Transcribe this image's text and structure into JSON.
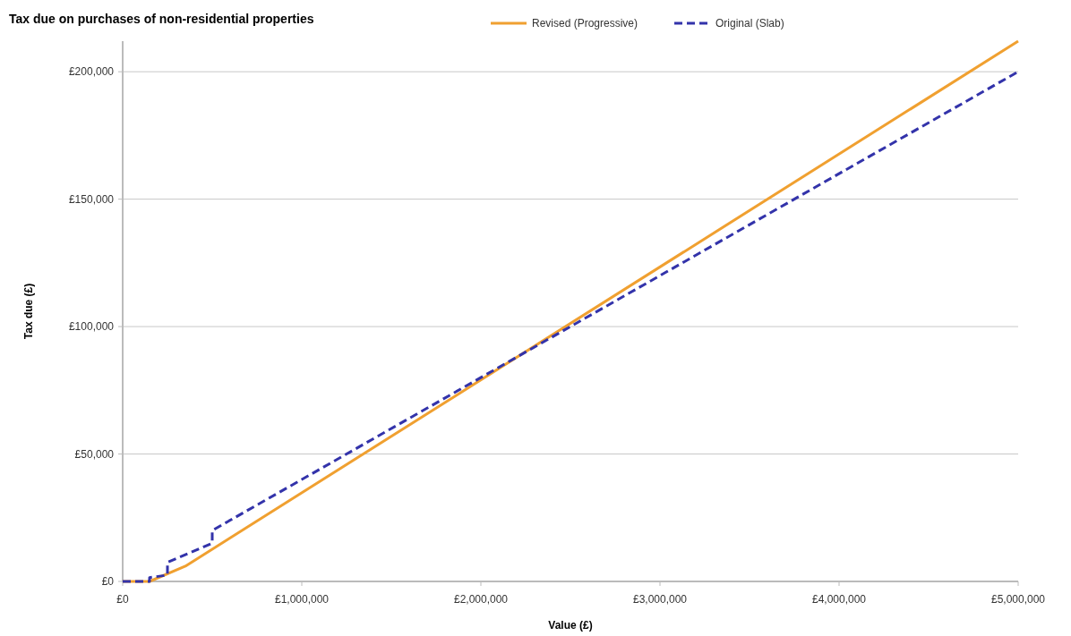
{
  "chart_data": {
    "type": "line",
    "title": "Tax due on purchases of non-residential properties",
    "xlabel": "Value (£)",
    "ylabel": "Tax due (£)",
    "xlim": [
      0,
      5000000
    ],
    "ylim": [
      0,
      212000
    ],
    "xticks": [
      {
        "value": 0,
        "label": "£0"
      },
      {
        "value": 1000000,
        "label": "£1,000,000"
      },
      {
        "value": 2000000,
        "label": "£2,000,000"
      },
      {
        "value": 3000000,
        "label": "£3,000,000"
      },
      {
        "value": 4000000,
        "label": "£4,000,000"
      },
      {
        "value": 5000000,
        "label": "£5,000,000"
      }
    ],
    "yticks": [
      {
        "value": 0,
        "label": "£0"
      },
      {
        "value": 50000,
        "label": "£50,000"
      },
      {
        "value": 100000,
        "label": "£100,000"
      },
      {
        "value": 150000,
        "label": "£150,000"
      },
      {
        "value": 200000,
        "label": "£200,000"
      }
    ],
    "grid": "y",
    "legend": "top right",
    "marker": "none",
    "series": [
      {
        "name": "Revised (Progressive)",
        "color": "#f0a030",
        "line_style": "solid",
        "x": [
          0,
          150000,
          350000,
          5000000
        ],
        "values": [
          0,
          0,
          6000,
          212000
        ]
      },
      {
        "name": "Original (Slab)",
        "color": "#3333aa",
        "line_style": "dashed",
        "x": [
          0,
          150000,
          150000,
          250000,
          250000,
          500000,
          500000,
          5000000
        ],
        "values": [
          0,
          0,
          1500,
          2500,
          7500,
          15000,
          20000,
          200000
        ]
      }
    ]
  }
}
